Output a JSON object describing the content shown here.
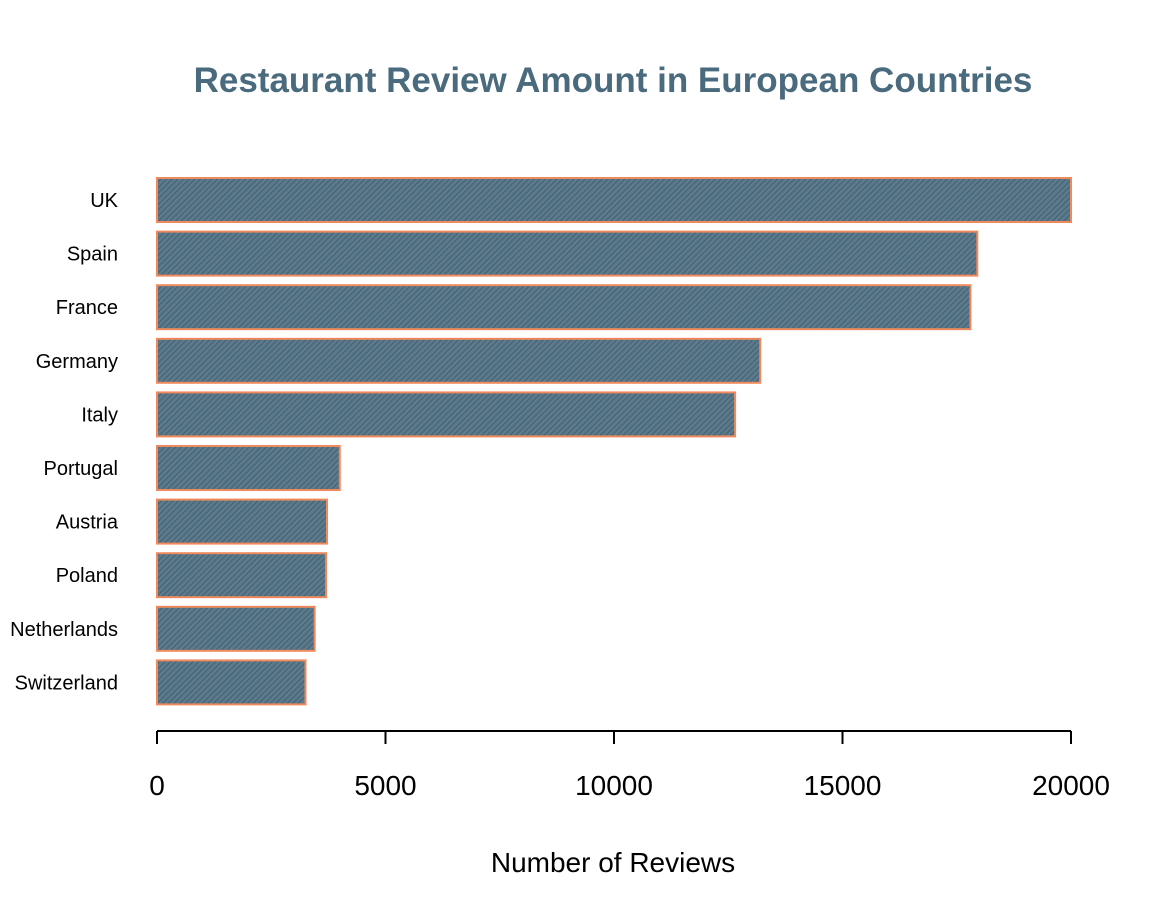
{
  "chart_data": {
    "type": "bar",
    "orientation": "horizontal",
    "title": "Restaurant Review Amount in European Countries",
    "xlabel": "Number of Reviews",
    "ylabel": "",
    "categories": [
      "UK",
      "Spain",
      "France",
      "Germany",
      "Italy",
      "Portugal",
      "Austria",
      "Poland",
      "Netherlands",
      "Switzerland"
    ],
    "values": [
      20000,
      17950,
      17800,
      13200,
      12650,
      4000,
      3720,
      3700,
      3450,
      3250
    ],
    "xlim": [
      0,
      20000
    ],
    "xticks": [
      "0",
      "5000",
      "10000",
      "15000",
      "20000"
    ],
    "grid": false,
    "legend": "none",
    "colors": {
      "title": "#4a6a7d",
      "bar_fill": "#5b7a8c",
      "bar_hatch": "#3e5968",
      "bar_border": "#f08a5d",
      "axis": "#000000"
    }
  }
}
